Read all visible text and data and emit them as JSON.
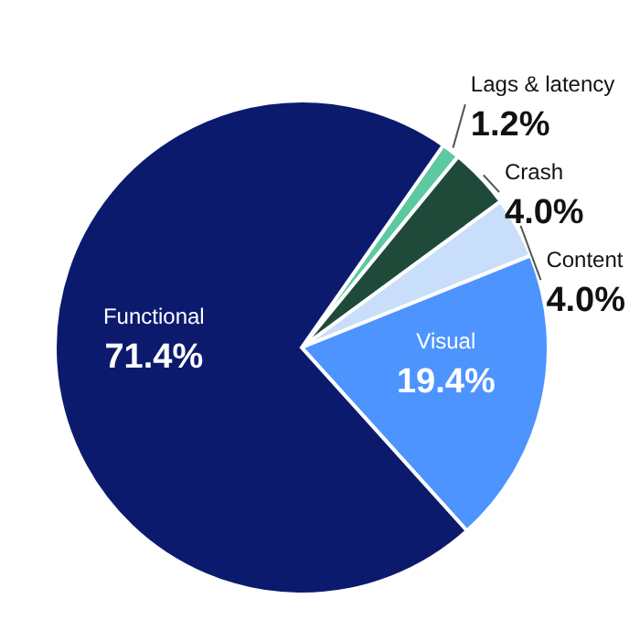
{
  "chart_data": {
    "type": "pie",
    "categories": [
      "Lags & latency",
      "Crash",
      "Content",
      "Visual",
      "Functional"
    ],
    "values": [
      1.2,
      4.0,
      4.0,
      19.4,
      71.4
    ],
    "colors": [
      "#5cc9a0",
      "#1f4a3a",
      "#c9defa",
      "#4d94ff",
      "#0c1a6e"
    ],
    "value_labels": [
      "1.2%",
      "4.0%",
      "4.0%",
      "19.4%",
      "71.4%"
    ]
  }
}
